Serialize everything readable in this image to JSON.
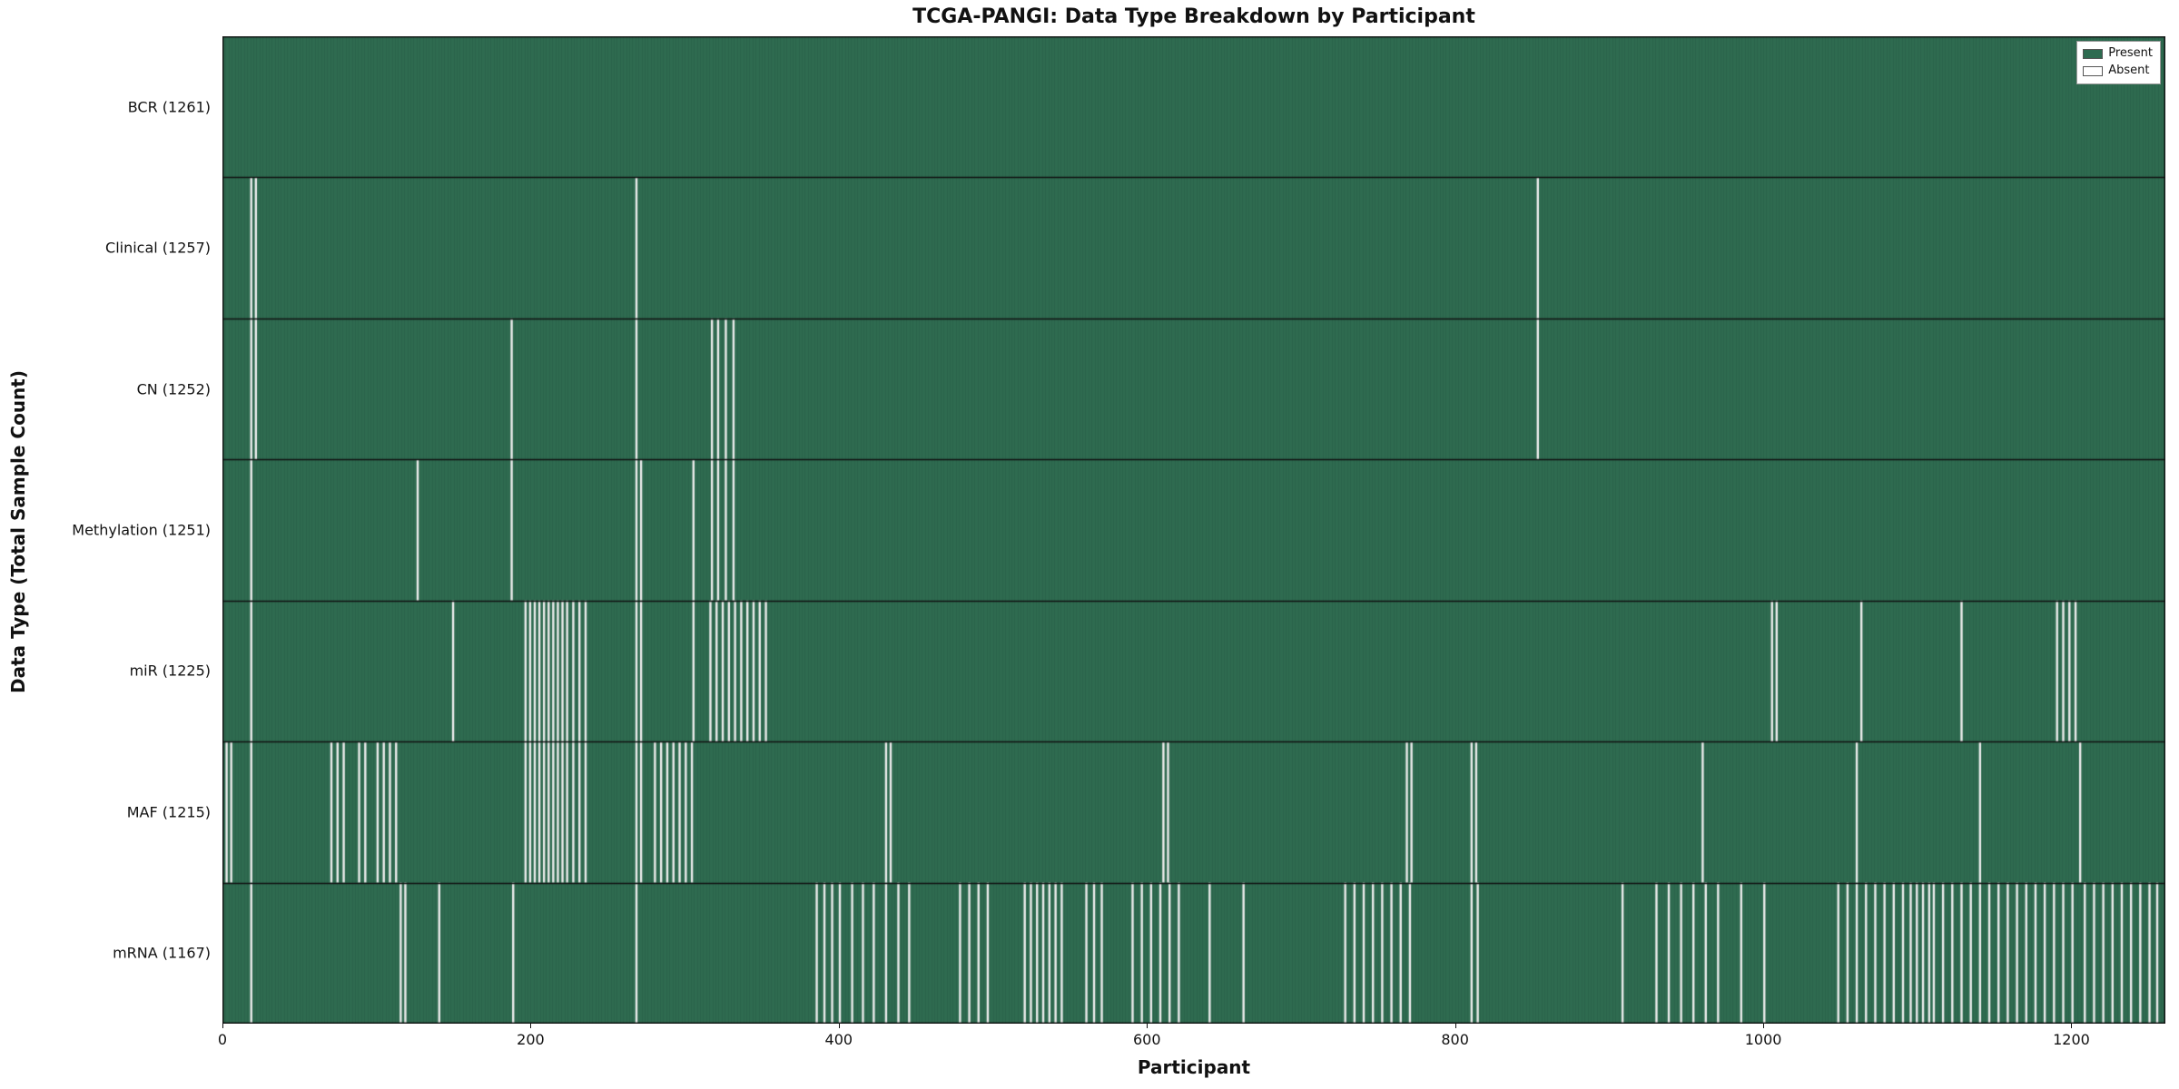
{
  "figure": {
    "title": "TCGA-PANGI: Data Type Breakdown by Participant",
    "xlabel": "Participant",
    "ylabel": "Data Type (Total Sample Count)"
  },
  "colors": {
    "present": "#2e6b50",
    "absent": "#ececec",
    "bar_edge_overlay": "rgba(0,0,0,0.10)",
    "frame": "#111111"
  },
  "chart_data": {
    "type": "heatmap",
    "title": "TCGA-PANGI: Data Type Breakdown by Participant",
    "xlabel": "Participant",
    "ylabel": "Data Type (Total Sample Count)",
    "n_participants": 1261,
    "x_ticks": [
      0,
      200,
      400,
      600,
      800,
      1000,
      1200
    ],
    "value_encoding": {
      "present": "filled green cell",
      "absent": "white gap"
    },
    "legend": [
      {
        "label": "Present",
        "color": "#2e6b50"
      },
      {
        "label": "Absent",
        "color": "#ffffff"
      }
    ],
    "legend_position": "upper right",
    "rows": [
      {
        "name": "BCR",
        "label": "BCR (1261)",
        "count": 1261,
        "absent": []
      },
      {
        "name": "Clinical",
        "label": "Clinical (1257)",
        "count": 1257,
        "absent": [
          18,
          21,
          268,
          853
        ]
      },
      {
        "name": "CN",
        "label": "CN (1252)",
        "count": 1252,
        "absent": [
          18,
          21,
          187,
          268,
          317,
          321,
          326,
          331,
          853
        ]
      },
      {
        "name": "Methylation",
        "label": "Methylation (1251)",
        "count": 1251,
        "absent": [
          18,
          126,
          187,
          268,
          271,
          305,
          317,
          321,
          326,
          331
        ]
      },
      {
        "name": "miR",
        "label": "miR (1225)",
        "count": 1225,
        "absent": [
          18,
          149,
          196,
          199,
          202,
          205,
          208,
          211,
          214,
          217,
          220,
          223,
          227,
          231,
          235,
          268,
          271,
          305,
          316,
          320,
          324,
          328,
          332,
          336,
          340,
          344,
          348,
          352,
          1005,
          1008,
          1063,
          1128,
          1190,
          1194,
          1198,
          1202
        ]
      },
      {
        "name": "MAF",
        "label": "MAF (1215)",
        "count": 1215,
        "absent": [
          2,
          5,
          18,
          70,
          74,
          78,
          88,
          92,
          100,
          104,
          108,
          112,
          196,
          199,
          202,
          205,
          208,
          211,
          214,
          217,
          220,
          223,
          227,
          231,
          235,
          268,
          271,
          280,
          284,
          288,
          292,
          296,
          300,
          304,
          430,
          433,
          610,
          613,
          768,
          771,
          810,
          813,
          960,
          1060,
          1140,
          1205
        ]
      },
      {
        "name": "mRNA",
        "label": "mRNA (1167)",
        "count": 1167,
        "absent": [
          18,
          115,
          118,
          140,
          188,
          268,
          385,
          390,
          395,
          400,
          408,
          415,
          422,
          430,
          438,
          445,
          478,
          484,
          490,
          496,
          520,
          524,
          528,
          532,
          536,
          540,
          544,
          560,
          565,
          570,
          590,
          596,
          602,
          608,
          614,
          620,
          640,
          662,
          728,
          734,
          740,
          746,
          752,
          758,
          764,
          770,
          810,
          814,
          908,
          930,
          938,
          946,
          954,
          962,
          970,
          985,
          1000,
          1048,
          1054,
          1060,
          1066,
          1072,
          1078,
          1084,
          1090,
          1095,
          1099,
          1103,
          1107,
          1110,
          1116,
          1122,
          1128,
          1134,
          1140,
          1146,
          1152,
          1158,
          1164,
          1170,
          1176,
          1182,
          1188,
          1194,
          1200,
          1208,
          1214,
          1220,
          1226,
          1232,
          1238,
          1244,
          1250,
          1255
        ]
      }
    ]
  }
}
